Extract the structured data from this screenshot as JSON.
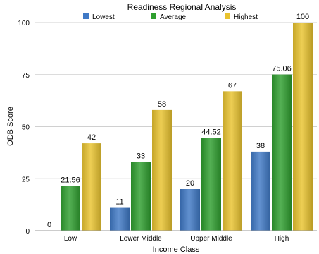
{
  "chart_data": {
    "type": "bar",
    "title": "Readiness Regional Analysis",
    "xlabel": "Income Class",
    "ylabel": "ODB Score",
    "categories": [
      "Low",
      "Lower Middle",
      "Upper Middle",
      "High"
    ],
    "series": [
      {
        "name": "Lowest",
        "values": [
          0,
          11,
          20,
          38
        ],
        "labels": [
          "0",
          "11",
          "20",
          "38"
        ],
        "color": "#3f79c6"
      },
      {
        "name": "Average",
        "values": [
          21.56,
          33,
          44.52,
          75.06
        ],
        "labels": [
          "21.56",
          "33",
          "44.52",
          "75.06"
        ],
        "color": "#2f9f2f"
      },
      {
        "name": "Highest",
        "values": [
          42,
          58,
          67,
          100
        ],
        "labels": [
          "42",
          "58",
          "67",
          "100"
        ],
        "color": "#e9c32f"
      }
    ],
    "ylim": [
      0,
      100
    ],
    "yticks": [
      0,
      25,
      50,
      75,
      100
    ],
    "grid": true,
    "legend_position": "top"
  }
}
